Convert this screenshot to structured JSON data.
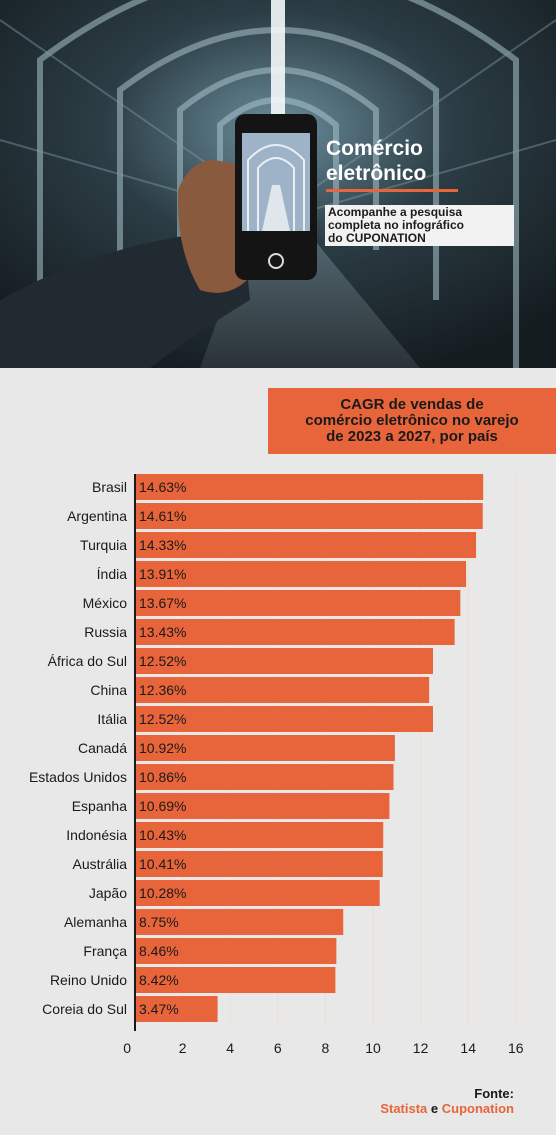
{
  "header": {
    "title_line1": "Comércio",
    "title_line2": "eletrônico",
    "subtitle_line1": "Acompanhe a pesquisa",
    "subtitle_line2": "completa no infográfico",
    "subtitle_line3": "do CUPONATION"
  },
  "colors": {
    "accent": "#e8643a",
    "background": "#e8e8e8",
    "hero_dark": "#1b262b"
  },
  "chart_data": {
    "type": "bar",
    "orientation": "horizontal",
    "title_lines": [
      "CAGR de vendas de",
      "comércio eletrônico no varejo",
      "de 2023 a 2027, por país"
    ],
    "categories": [
      "Brasil",
      "Argentina",
      "Turquia",
      "Índia",
      "México",
      "Russia",
      "África do Sul",
      "China",
      "Itália",
      "Canadá",
      "Estados Unidos",
      "Espanha",
      "Indonésia",
      "Austrália",
      "Japão",
      "Alemanha",
      "França",
      "Reino Unido",
      "Coreia do Sul"
    ],
    "values": [
      14.63,
      14.61,
      14.33,
      13.91,
      13.67,
      13.43,
      12.52,
      12.36,
      12.52,
      10.92,
      10.86,
      10.69,
      10.43,
      10.41,
      10.28,
      8.75,
      8.46,
      8.42,
      3.47
    ],
    "value_labels": [
      "14.63%",
      "14.61%",
      "14.33%",
      "13.91%",
      "13.67%",
      "13.43%",
      "12.52%",
      "12.36%",
      "12.52%",
      "10.92%",
      "10.86%",
      "10.69%",
      "10.43%",
      "10.41%",
      "10.28%",
      "8.75%",
      "8.46%",
      "8.42%",
      "3.47%"
    ],
    "x_ticks": [
      "0",
      "2",
      "4",
      "6",
      "8",
      "10",
      "12",
      "14",
      "16"
    ],
    "xlim": [
      0,
      16
    ],
    "xlabel": "",
    "ylabel": "",
    "grid": true,
    "bar_color": "#e8643a"
  },
  "source": {
    "label": "Fonte:",
    "name1": "Statista",
    "conjunction": "e",
    "name2": "Cuponation"
  }
}
